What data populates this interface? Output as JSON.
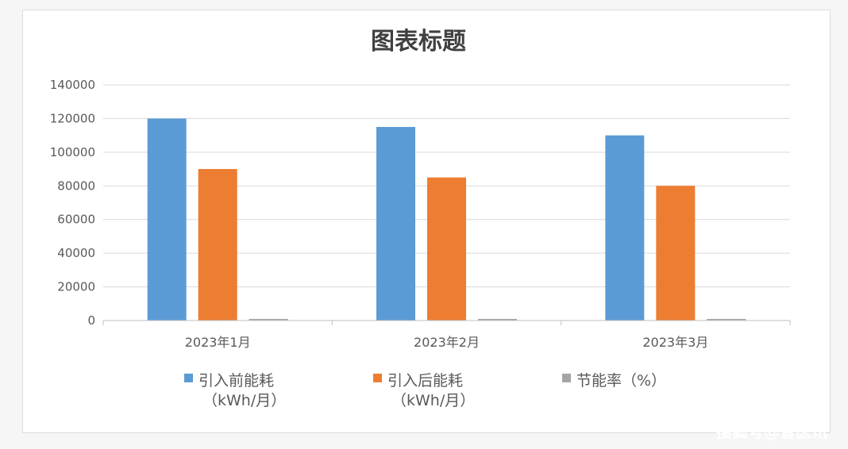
{
  "chart_data": {
    "type": "bar",
    "title": "图表标题",
    "xlabel": "",
    "ylabel": "",
    "categories": [
      "2023年1月",
      "2023年2月",
      "2023年3月"
    ],
    "ylim": [
      0,
      140000
    ],
    "yticks": [
      0,
      20000,
      40000,
      60000,
      80000,
      100000,
      120000,
      140000
    ],
    "grid": true,
    "legend_position": "bottom",
    "series": [
      {
        "name": "引入前能耗",
        "name_line2": "（kWh/月）",
        "color": "#5b9bd5",
        "values": [
          120000,
          115000,
          110000
        ]
      },
      {
        "name": "引入后能耗",
        "name_line2": "（kWh/月）",
        "color": "#ed7d31",
        "values": [
          90000,
          85000,
          80000
        ]
      },
      {
        "name": "节能率（%）",
        "name_line2": "",
        "color": "#a5a5a5",
        "values": [
          25,
          26.1,
          27.3
        ]
      }
    ]
  },
  "watermark": "搜狐号@智医讯"
}
